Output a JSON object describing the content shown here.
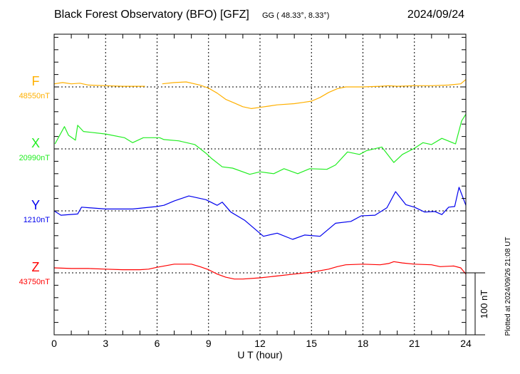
{
  "chart_data": {
    "type": "line",
    "title": "Black Forest Observatory (BFO)  [GFZ]",
    "subtitle": "GG ( 48.33°,  8.33°)",
    "date": "2024/09/24",
    "xlabel": "U T (hour)",
    "xlim": [
      0,
      24
    ],
    "xticks": [
      "0",
      "3",
      "6",
      "9",
      "12",
      "15",
      "18",
      "21",
      "24"
    ],
    "grid": "dotted vertical every 3 h, dotted baseline per component",
    "scale_bar_label": "100 nT",
    "scale_bar_nT": 100,
    "y_tick_step_nT": 20,
    "footer": "Plotted at 2024/09/26 21:08 UT",
    "series": [
      {
        "name": "F",
        "baseline_label": "48550nT",
        "baseline_nT": 48550,
        "color": "#ffb000",
        "x": [
          0,
          0.5,
          1,
          1.5,
          2,
          3,
          4,
          5,
          5.3,
          null,
          6.3,
          7,
          7.7,
          8.5,
          9,
          9.5,
          10,
          10.5,
          11,
          11.5,
          12,
          12.5,
          13,
          14,
          14.5,
          15,
          15.5,
          16,
          16.5,
          17,
          18,
          19,
          19.5,
          20,
          21,
          22,
          23,
          23.7,
          24
        ],
        "y": [
          5,
          7,
          5,
          6,
          3,
          2,
          1,
          1,
          1,
          null,
          5,
          7,
          8,
          3,
          -2,
          -10,
          -20,
          -26,
          -32,
          -35,
          -33,
          -31,
          -29,
          -27,
          -25,
          -23,
          -17,
          -9,
          -3,
          0,
          0,
          1,
          2,
          1,
          2,
          2,
          3,
          5,
          12
        ]
      },
      {
        "name": "X",
        "baseline_label": "20990nT",
        "baseline_nT": 20990,
        "color": "#22ee22",
        "x": [
          0.05,
          0.6,
          0.84,
          1.24,
          1.37,
          1.71,
          3.0,
          4.1,
          4.57,
          5.2,
          6.15,
          6.4,
          7.26,
          8.2,
          8.85,
          9.16,
          9.8,
          10.4,
          11.4,
          12.0,
          12.8,
          13.4,
          14.2,
          14.9,
          15.9,
          16.4,
          17.1,
          17.8,
          18.2,
          19.1,
          19.8,
          20.3,
          21.0,
          21.5,
          22.0,
          22.6,
          23.4,
          23.75,
          24
        ],
        "y": [
          8,
          36,
          22,
          14,
          38,
          28,
          24,
          18,
          10,
          18,
          18,
          15,
          13,
          7,
          -7,
          -15,
          -29,
          -31,
          -41,
          -37,
          -40,
          -32,
          -40,
          -32,
          -33,
          -26,
          -5,
          -9,
          -3,
          3,
          -22,
          -9,
          1,
          10,
          7,
          17,
          8,
          45,
          56
        ]
      },
      {
        "name": "Y",
        "baseline_label": "1210nT",
        "baseline_nT": 1210,
        "color": "#0000ee",
        "x": [
          0,
          0.4,
          1.37,
          1.6,
          3,
          4.57,
          6.0,
          6.4,
          7.0,
          7.85,
          8.85,
          9.5,
          9.8,
          10.3,
          11.1,
          12.2,
          13.0,
          13.9,
          14.6,
          15.5,
          16.4,
          17.3,
          17.9,
          18.7,
          19.4,
          19.9,
          20.5,
          21.0,
          21.6,
          22.2,
          22.6,
          23.0,
          23.35,
          23.6,
          24
        ],
        "y": [
          0,
          -7,
          -5,
          6,
          3,
          3,
          7,
          9,
          16,
          24,
          18,
          9,
          14,
          -2,
          -15,
          -41,
          -36,
          -46,
          -39,
          -41,
          -20,
          -17,
          -8,
          -7,
          5,
          31,
          10,
          6,
          -2,
          -1,
          -6,
          6,
          7,
          38,
          9
        ]
      },
      {
        "name": "Z",
        "baseline_label": "43750nT",
        "baseline_nT": 43750,
        "color": "#ff0000",
        "x": [
          0,
          1,
          2,
          3,
          4,
          5,
          5.5,
          6,
          7,
          8,
          8.5,
          9,
          9.5,
          10,
          10.5,
          11,
          12,
          13,
          14,
          15,
          16,
          16.5,
          17,
          18,
          19,
          19.5,
          19.8,
          20.3,
          21,
          22,
          22.5,
          23.3,
          23.7,
          24
        ],
        "y": [
          8,
          7,
          7,
          6,
          5,
          5,
          6,
          9,
          14,
          14,
          10,
          5,
          -2,
          -7,
          -10,
          -10,
          -8,
          -5,
          -2,
          1,
          6,
          10,
          13,
          14,
          13,
          15,
          18,
          16,
          14,
          13,
          10,
          11,
          8,
          -2
        ]
      }
    ]
  }
}
